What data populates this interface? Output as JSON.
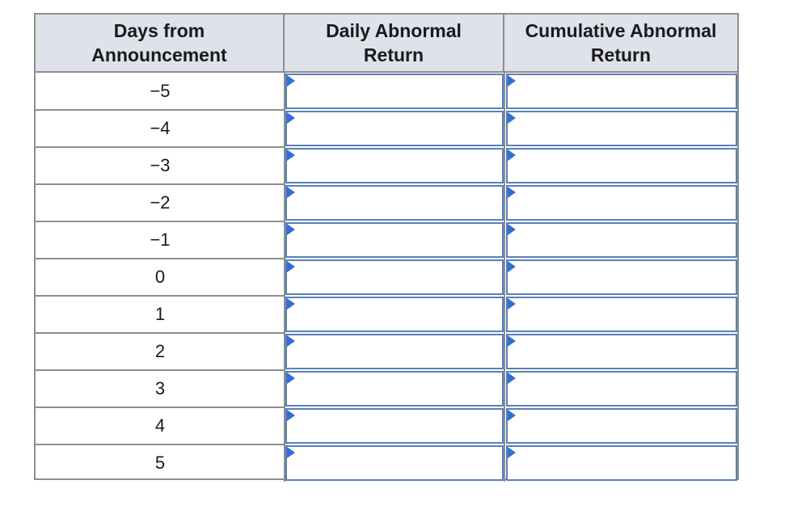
{
  "table": {
    "headers": {
      "days": "Days from\nAnnouncement",
      "daily": "Daily Abnormal\nReturn",
      "cumulative": "Cumulative Abnormal\nReturn"
    },
    "rows": [
      {
        "day": "−5",
        "daily": "",
        "cumulative": ""
      },
      {
        "day": "−4",
        "daily": "",
        "cumulative": ""
      },
      {
        "day": "−3",
        "daily": "",
        "cumulative": ""
      },
      {
        "day": "−2",
        "daily": "",
        "cumulative": ""
      },
      {
        "day": "−1",
        "daily": "",
        "cumulative": ""
      },
      {
        "day": "0",
        "daily": "",
        "cumulative": ""
      },
      {
        "day": "1",
        "daily": "",
        "cumulative": ""
      },
      {
        "day": "2",
        "daily": "",
        "cumulative": ""
      },
      {
        "day": "3",
        "daily": "",
        "cumulative": ""
      },
      {
        "day": "4",
        "daily": "",
        "cumulative": ""
      },
      {
        "day": "5",
        "daily": "",
        "cumulative": ""
      }
    ]
  },
  "colors": {
    "header_bg": "#dfe2ea",
    "grid_line": "#8e8e8e",
    "input_border": "#5b7fb8",
    "input_marker": "#2f6fd6"
  }
}
